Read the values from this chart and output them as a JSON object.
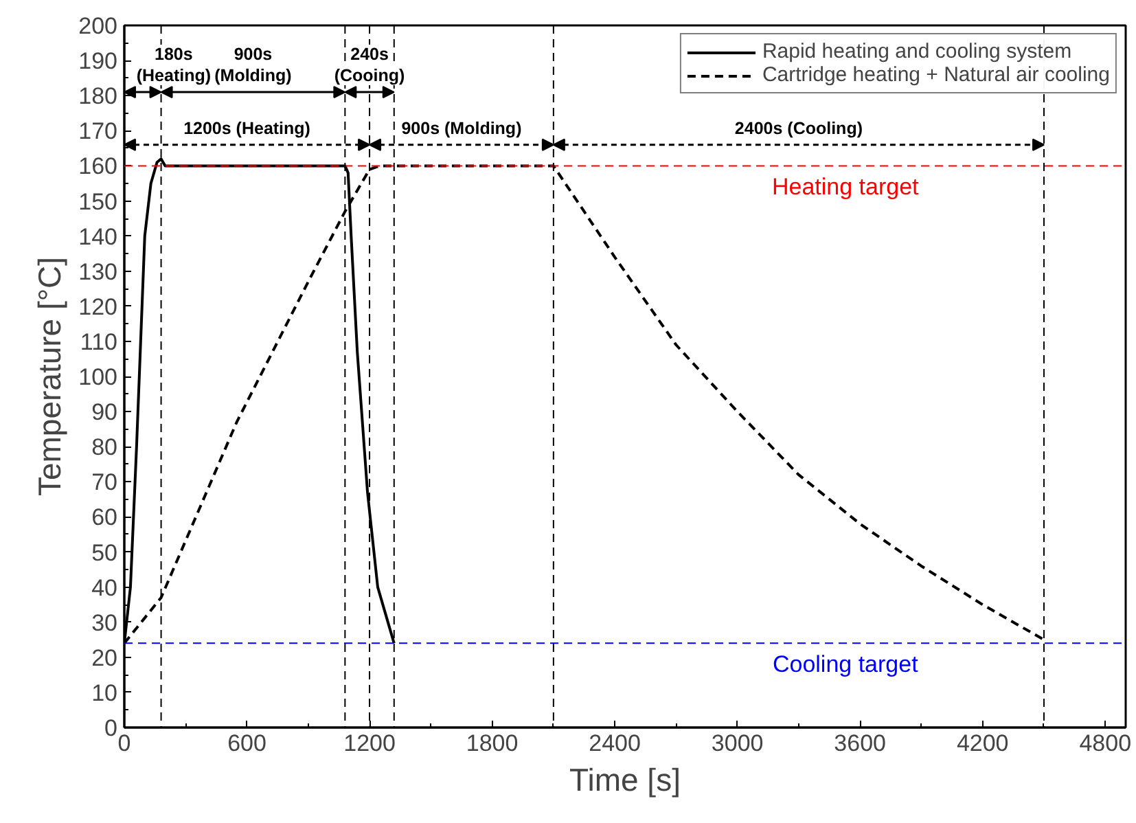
{
  "chart_data": {
    "type": "line",
    "xlabel": "Time [s]",
    "ylabel": "Temperature [°C]",
    "xlim": [
      0,
      4900
    ],
    "xticks": [
      0,
      600,
      1200,
      1800,
      2400,
      3000,
      3600,
      4200,
      4800
    ],
    "ylim": [
      0,
      200
    ],
    "yticks": [
      0,
      10,
      20,
      30,
      40,
      50,
      60,
      70,
      80,
      90,
      100,
      110,
      120,
      130,
      140,
      150,
      160,
      170,
      180,
      190,
      200
    ],
    "grid": false,
    "legend": "top right",
    "series": [
      {
        "name": "Rapid heating and cooling system",
        "color": "#000000",
        "line_style": "solid",
        "x": [
          0,
          30,
          60,
          100,
          130,
          160,
          180,
          200,
          1080,
          1095,
          1110,
          1140,
          1190,
          1240,
          1320
        ],
        "values": [
          24,
          40,
          80,
          140,
          155,
          161,
          162,
          160,
          160,
          158,
          140,
          107,
          67,
          40,
          24
        ]
      },
      {
        "name": "Cartridge heating + Natural air cooling",
        "color": "#000000",
        "line_style": "dashed",
        "x": [
          0,
          180,
          550,
          900,
          1080,
          1200,
          1250,
          2100,
          2400,
          2700,
          3000,
          3300,
          3600,
          3900,
          4200,
          4500
        ],
        "values": [
          24,
          37,
          87,
          127,
          147,
          159,
          160,
          160,
          134,
          109,
          90,
          72,
          58,
          46,
          35,
          25
        ]
      }
    ],
    "ref_lines": [
      {
        "axis": "y",
        "value": 160,
        "label": "Heating target",
        "color": "#ff0000",
        "line_style": "dashed"
      },
      {
        "axis": "y",
        "value": 24,
        "label": "Cooling target",
        "color": "#0000ff",
        "line_style": "dashed"
      },
      {
        "axis": "x",
        "value": 180,
        "color": "#000000",
        "line_style": "dashed"
      },
      {
        "axis": "x",
        "value": 1080,
        "color": "#000000",
        "line_style": "dashed"
      },
      {
        "axis": "x",
        "value": 1320,
        "color": "#000000",
        "line_style": "dashed"
      },
      {
        "axis": "x",
        "value": 1200,
        "color": "#000000",
        "line_style": "dashed"
      },
      {
        "axis": "x",
        "value": 2100,
        "color": "#000000",
        "line_style": "dashed"
      },
      {
        "axis": "x",
        "value": 4500,
        "color": "#000000",
        "line_style": "dashed"
      }
    ],
    "annotations": [
      "180s\n(Heating)",
      "900s\n(Molding)",
      "240s\n(Cooing)",
      "1200s (Heating)",
      "900s (Molding)",
      "2400s (Cooling)"
    ]
  }
}
